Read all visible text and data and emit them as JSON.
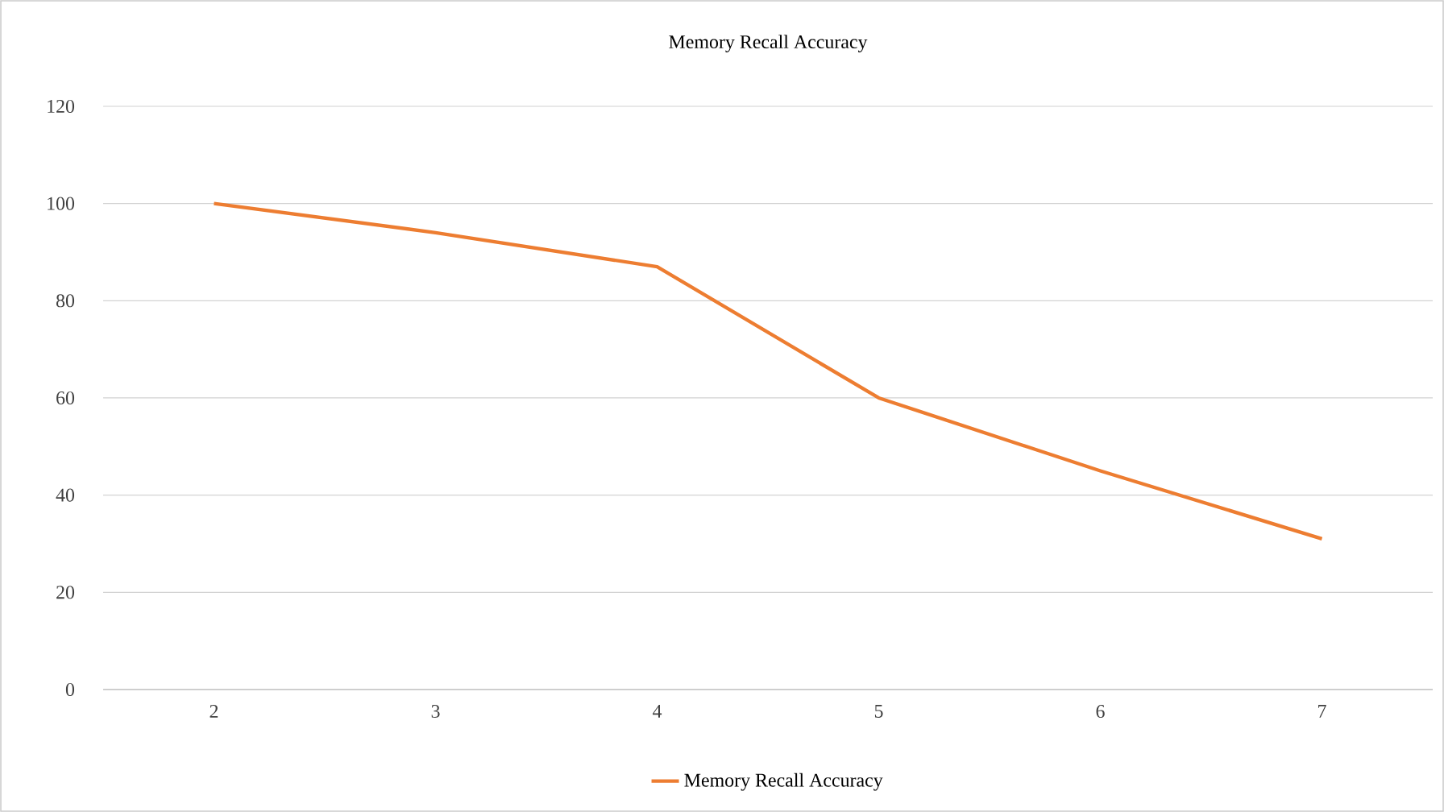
{
  "chart_data": {
    "type": "line",
    "title": "Memory Recall Accuracy",
    "categories": [
      "2",
      "3",
      "4",
      "5",
      "6",
      "7"
    ],
    "series": [
      {
        "name": "Memory Recall Accuracy",
        "color": "#ed7d31",
        "values": [
          100,
          94,
          87,
          60,
          45,
          31
        ]
      }
    ],
    "ylim": [
      0,
      120
    ],
    "yticks": [
      0,
      20,
      40,
      60,
      80,
      100,
      120
    ],
    "grid": "y",
    "legend": "bottom",
    "marker": "none",
    "line_style": "solid"
  }
}
